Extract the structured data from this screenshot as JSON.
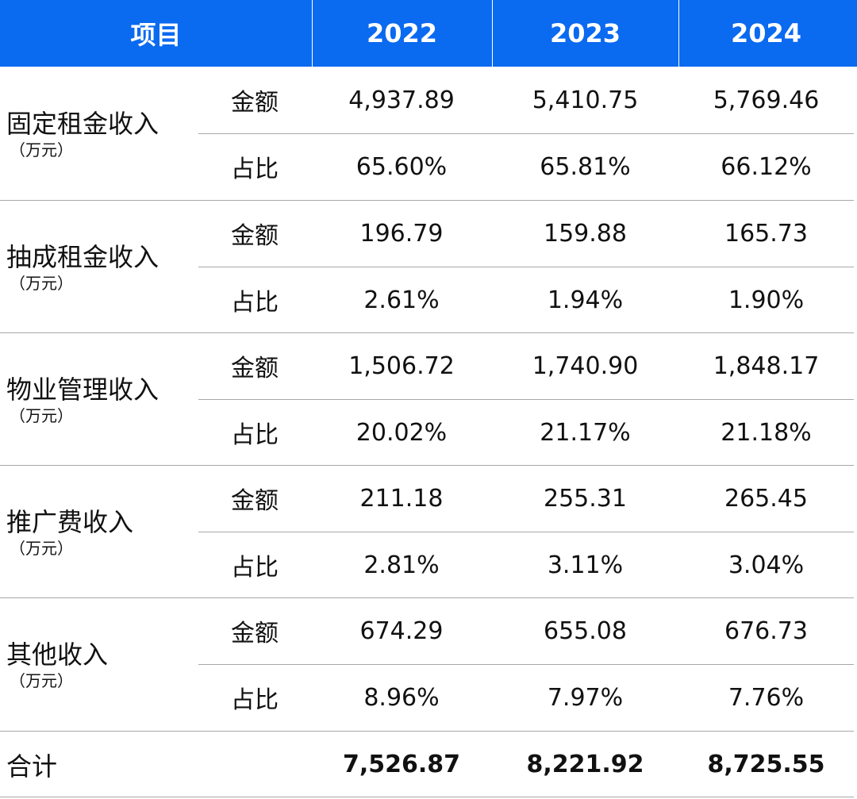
{
  "header": {
    "item_label": "项目",
    "years": [
      "2022",
      "2023",
      "2024"
    ]
  },
  "groups": [
    {
      "name": "固定租金收入",
      "unit": "（万元）",
      "rows": [
        {
          "label": "金额",
          "values": [
            "4,937.89",
            "5,410.75",
            "5,769.46"
          ]
        },
        {
          "label": "占比",
          "values": [
            "65.60%",
            "65.81%",
            "66.12%"
          ]
        }
      ]
    },
    {
      "name": "抽成租金收入",
      "unit": "（万元）",
      "rows": [
        {
          "label": "金额",
          "values": [
            "196.79",
            "159.88",
            "165.73"
          ]
        },
        {
          "label": "占比",
          "values": [
            "2.61%",
            "1.94%",
            "1.90%"
          ]
        }
      ]
    },
    {
      "name": "物业管理收入",
      "unit": "（万元）",
      "rows": [
        {
          "label": "金额",
          "values": [
            "1,506.72",
            "1,740.90",
            "1,848.17"
          ]
        },
        {
          "label": "占比",
          "values": [
            "20.02%",
            "21.17%",
            "21.18%"
          ]
        }
      ]
    },
    {
      "name": "推广费收入",
      "unit": "（万元）",
      "rows": [
        {
          "label": "金额",
          "values": [
            "211.18",
            "255.31",
            "265.45"
          ]
        },
        {
          "label": "占比",
          "values": [
            "2.81%",
            "3.11%",
            "3.04%"
          ]
        }
      ]
    },
    {
      "name": "其他收入",
      "unit": "（万元）",
      "rows": [
        {
          "label": "金额",
          "values": [
            "674.29",
            "655.08",
            "676.73"
          ]
        },
        {
          "label": "占比",
          "values": [
            "8.96%",
            "7.97%",
            "7.76%"
          ]
        }
      ]
    }
  ],
  "total": {
    "label": "合计",
    "values": [
      "7,526.87",
      "8,221.92",
      "8,725.55"
    ]
  },
  "colors": {
    "header_bg": "#0a6af0",
    "header_text": "#ffffff",
    "divider": "#a8a8a8"
  }
}
